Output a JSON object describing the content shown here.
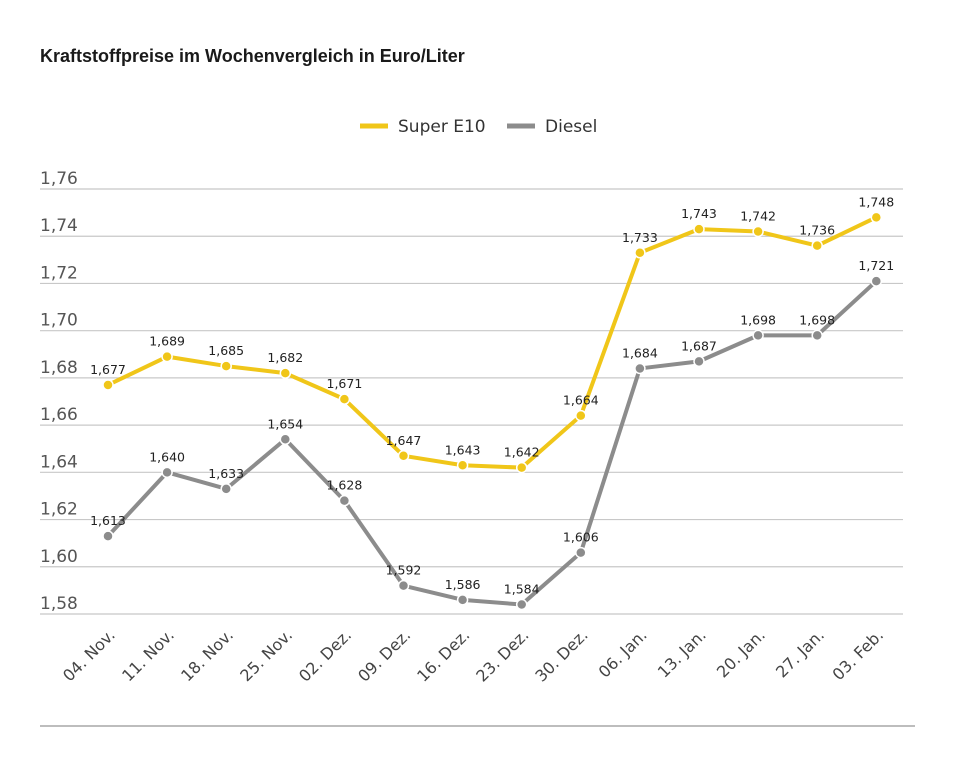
{
  "chart_data": {
    "type": "line",
    "title": "Kraftstoffpreise im Wochenvergleich in Euro/Liter",
    "categories": [
      "04. Nov.",
      "11. Nov.",
      "18. Nov.",
      "25. Nov.",
      "02. Dez.",
      "09. Dez.",
      "16. Dez.",
      "23. Dez.",
      "30. Dez.",
      "06. Jan.",
      "13. Jan.",
      "20. Jan.",
      "27. Jan.",
      "03. Feb."
    ],
    "series": [
      {
        "name": "Super E10",
        "color": "#f0c619",
        "values": [
          1.677,
          1.689,
          1.685,
          1.682,
          1.671,
          1.647,
          1.643,
          1.642,
          1.664,
          1.733,
          1.743,
          1.742,
          1.736,
          1.748
        ],
        "labels": [
          "1,677",
          "1,689",
          "1,685",
          "1,682",
          "1,671",
          "1,647",
          "1,643",
          "1,642",
          "1,664",
          "1,733",
          "1,743",
          "1,742",
          "1,736",
          "1,748"
        ]
      },
      {
        "name": "Diesel",
        "color": "#8c8c8c",
        "values": [
          1.613,
          1.64,
          1.633,
          1.654,
          1.628,
          1.592,
          1.586,
          1.584,
          1.606,
          1.684,
          1.687,
          1.698,
          1.698,
          1.721
        ],
        "labels": [
          "1,613",
          "1,640",
          "1,633",
          "1,654",
          "1,628",
          "1,592",
          "1,586",
          "1,584",
          "1,606",
          "1,684",
          "1,687",
          "1,698",
          "1,698",
          "1,721"
        ]
      }
    ],
    "yticks": [
      1.58,
      1.6,
      1.62,
      1.64,
      1.66,
      1.68,
      1.7,
      1.72,
      1.74,
      1.76
    ],
    "ytick_labels": [
      "1,58",
      "1,60",
      "1,62",
      "1,64",
      "1,66",
      "1,68",
      "1,70",
      "1,72",
      "1,74",
      "1,76"
    ],
    "ylim": [
      1.58,
      1.76
    ],
    "xlabel": "",
    "ylabel": "",
    "grid": true,
    "legend_position": "top-center"
  }
}
